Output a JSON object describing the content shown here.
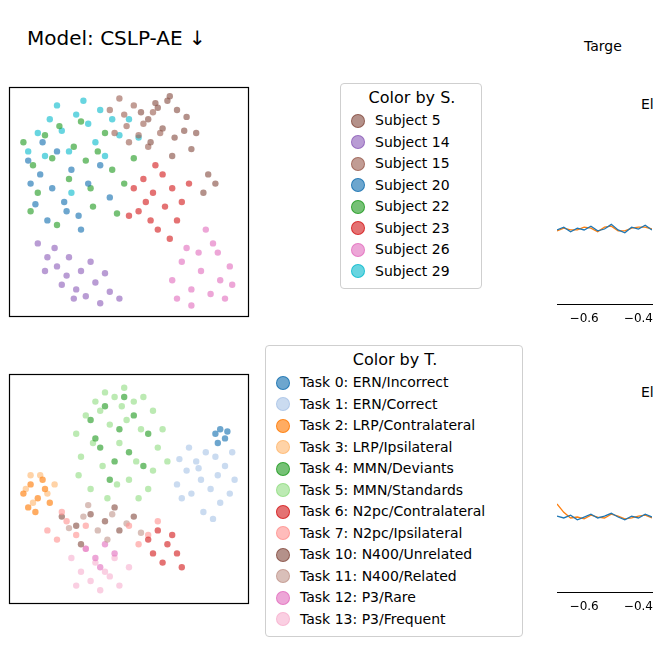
{
  "header": {
    "title": "Model: CSLP-AE ↓",
    "right_title": "Targe"
  },
  "chart_data": [
    {
      "type": "scatter",
      "legend_title": "Color by S.",
      "legend": "right",
      "grid": false,
      "tick_labels": false,
      "xlim": [
        0,
        10
      ],
      "ylim": [
        0,
        10
      ],
      "xticks": [],
      "yticks": [],
      "series": [
        {
          "name": "Subject 5",
          "color": "#8c564b",
          "x": [
            5.8,
            6.2,
            6.6,
            7.0,
            7.4,
            6.4,
            6.9,
            7.3,
            5.9,
            6.7,
            7.8,
            8.3,
            8.6,
            8.1,
            6.1,
            7.6,
            5.5,
            6.8
          ],
          "values": [
            8.6,
            9.1,
            9.4,
            9.0,
            8.7,
            8.2,
            7.8,
            8.1,
            7.6,
            9.6,
            8.0,
            6.2,
            5.8,
            5.4,
            9.3,
            7.3,
            8.9,
            7.0
          ]
        },
        {
          "name": "Subject 14",
          "color": "#9467bd",
          "x": [
            1.2,
            1.6,
            2.0,
            2.4,
            2.8,
            3.2,
            3.6,
            1.9,
            2.5,
            3.0,
            3.8,
            4.2,
            4.6,
            2.2,
            1.5,
            3.4,
            4.0,
            2.7
          ],
          "values": [
            3.2,
            2.6,
            2.2,
            1.8,
            1.2,
            0.9,
            1.5,
            3.0,
            2.6,
            2.0,
            0.6,
            1.1,
            0.8,
            1.4,
            2.0,
            2.4,
            1.9,
            0.8
          ]
        },
        {
          "name": "Subject 15",
          "color": "#a0675a",
          "x": [
            4.8,
            5.2,
            5.6,
            4.4,
            5.0,
            6.0,
            4.6,
            5.4,
            6.3,
            4.2,
            5.8,
            4.9
          ],
          "values": [
            8.8,
            9.2,
            8.4,
            8.0,
            7.6,
            8.9,
            9.5,
            7.9,
            8.0,
            9.0,
            7.4,
            8.3
          ]
        },
        {
          "name": "Subject 20",
          "color": "#1f77b4",
          "x": [
            0.8,
            1.3,
            1.8,
            2.3,
            2.9,
            1.1,
            1.6,
            2.6,
            3.3,
            3.8,
            0.9,
            2.0,
            4.2,
            3.0,
            1.4,
            2.4
          ],
          "values": [
            6.8,
            6.2,
            5.6,
            5.0,
            4.4,
            4.9,
            4.2,
            6.4,
            5.8,
            6.6,
            5.8,
            7.2,
            5.2,
            3.8,
            7.6,
            4.6
          ]
        },
        {
          "name": "Subject 22",
          "color": "#2ca02c",
          "x": [
            0.6,
            1.0,
            1.5,
            2.1,
            2.7,
            3.2,
            3.7,
            4.3,
            4.8,
            1.2,
            2.5,
            3.5,
            4.5,
            5.2,
            2.0,
            3.0,
            0.9,
            4.0,
            3.4,
            1.8
          ],
          "values": [
            7.6,
            6.6,
            7.9,
            8.3,
            7.4,
            6.8,
            7.2,
            6.4,
            5.8,
            5.4,
            6.0,
            4.8,
            4.5,
            6.9,
            4.0,
            8.5,
            4.6,
            8.0,
            5.6,
            6.9
          ]
        },
        {
          "name": "Subject 23",
          "color": "#d62728",
          "x": [
            5.2,
            5.6,
            6.0,
            6.4,
            6.8,
            7.2,
            5.4,
            5.9,
            6.5,
            7.0,
            6.2,
            5.7,
            6.7,
            7.5,
            5.0,
            6.1
          ],
          "values": [
            5.6,
            6.0,
            5.4,
            6.2,
            5.6,
            5.0,
            4.6,
            4.2,
            4.8,
            4.2,
            3.8,
            5.0,
            3.4,
            5.8,
            4.4,
            6.6
          ]
        },
        {
          "name": "Subject 26",
          "color": "#e377c2",
          "x": [
            6.8,
            7.2,
            7.6,
            8.0,
            8.4,
            8.8,
            9.2,
            7.4,
            7.9,
            8.5,
            9.0,
            7.0,
            8.2,
            8.7,
            7.6,
            9.3
          ],
          "values": [
            1.6,
            2.4,
            1.2,
            2.0,
            1.0,
            1.6,
            2.2,
            3.0,
            2.8,
            3.2,
            0.8,
            0.8,
            3.8,
            2.8,
            0.5,
            1.4
          ]
        },
        {
          "name": "Subject 29",
          "color": "#17becf",
          "x": [
            1.2,
            1.7,
            2.2,
            2.8,
            3.3,
            3.8,
            4.3,
            1.5,
            2.5,
            3.6,
            4.6,
            5.0,
            0.8,
            2.0,
            3.1,
            4.0,
            5.4,
            2.6
          ],
          "values": [
            8.0,
            8.6,
            8.1,
            8.8,
            8.4,
            9.0,
            8.6,
            7.0,
            7.2,
            7.6,
            7.9,
            8.6,
            7.2,
            9.2,
            9.4,
            7.0,
            7.8,
            5.4
          ]
        }
      ]
    },
    {
      "type": "scatter",
      "legend_title": "Color by T.",
      "legend": "right",
      "grid": false,
      "tick_labels": false,
      "xlim": [
        0,
        10
      ],
      "ylim": [
        0,
        10
      ],
      "xticks": [],
      "yticks": [],
      "series": [
        {
          "name": "Task 0: ERN/Incorrect",
          "color": "#1f77b4",
          "x": [
            8.6,
            8.8,
            9.0,
            8.7,
            9.1
          ],
          "values": [
            7.4,
            7.6,
            7.2,
            7.0,
            7.5
          ]
        },
        {
          "name": "Task 1: ERN/Correct",
          "color": "#aec7e8",
          "x": [
            7.0,
            7.4,
            7.8,
            8.2,
            8.6,
            9.0,
            9.4,
            7.2,
            7.6,
            8.0,
            8.4,
            8.8,
            9.2,
            7.5,
            8.1,
            8.7,
            7.9,
            8.5,
            9.3,
            7.1
          ],
          "values": [
            5.2,
            5.8,
            6.2,
            6.6,
            6.4,
            6.0,
            5.4,
            4.6,
            4.8,
            5.4,
            5.0,
            4.4,
            4.8,
            6.8,
            4.0,
            5.6,
            5.9,
            3.7,
            6.6,
            6.3
          ]
        },
        {
          "name": "Task 2: LRP/Contralateral",
          "color": "#ff7f0e",
          "x": [
            0.6,
            0.9,
            1.2,
            1.5,
            0.8,
            1.1,
            1.4,
            1.7
          ],
          "values": [
            4.8,
            5.2,
            4.6,
            5.0,
            4.2,
            4.0,
            5.4,
            4.4
          ]
        },
        {
          "name": "Task 3: LRP/Ipsilateral",
          "color": "#ffbb78",
          "x": [
            0.7,
            1.0,
            1.3,
            1.6,
            1.9,
            0.9
          ],
          "values": [
            5.0,
            4.4,
            5.6,
            4.8,
            5.2,
            5.6
          ]
        },
        {
          "name": "Task 4: MMN/Deviants",
          "color": "#2ca02c",
          "x": [
            3.4,
            4.0,
            4.6,
            5.2,
            5.8,
            3.8,
            4.4,
            5.0,
            5.6,
            4.2,
            4.8,
            3.6
          ],
          "values": [
            8.0,
            8.6,
            7.6,
            8.2,
            7.4,
            6.8,
            6.2,
            6.6,
            6.0,
            5.4,
            9.0,
            7.2
          ]
        },
        {
          "name": "Task 5: MMN/Standards",
          "color": "#98df8a",
          "x": [
            2.8,
            3.2,
            3.6,
            4.0,
            4.4,
            4.8,
            5.2,
            5.6,
            6.0,
            6.4,
            3.0,
            3.5,
            4.2,
            4.9,
            5.5,
            6.2,
            2.9,
            3.9,
            4.6,
            5.3,
            6.0,
            6.6,
            3.4,
            4.5,
            5.0,
            5.8,
            4.1,
            5.4,
            3.8,
            4.7
          ],
          "values": [
            7.4,
            8.2,
            8.8,
            9.2,
            9.0,
            9.4,
            8.8,
            9.0,
            8.4,
            7.6,
            6.4,
            7.0,
            7.8,
            8.0,
            7.6,
            6.8,
            5.6,
            6.0,
            7.0,
            6.2,
            5.8,
            6.2,
            5.0,
            5.2,
            5.4,
            5.0,
            4.6,
            4.6,
            8.4,
            8.6
          ]
        },
        {
          "name": "Task 6: N2pc/Contralateral",
          "color": "#d62728",
          "x": [
            5.8,
            6.2,
            6.6,
            7.0,
            6.4,
            6.8,
            7.2,
            6.0
          ],
          "values": [
            2.8,
            3.2,
            2.6,
            2.2,
            1.8,
            3.0,
            1.6,
            2.2
          ]
        },
        {
          "name": "Task 7: N2pc/Ipsilateral",
          "color": "#ff9896",
          "x": [
            1.6,
            2.0,
            2.4,
            2.8,
            3.2,
            5.0,
            5.4,
            5.8,
            2.2,
            6.2
          ],
          "values": [
            3.2,
            2.8,
            3.6,
            3.0,
            3.4,
            3.4,
            2.6,
            3.0,
            4.0,
            3.6
          ]
        },
        {
          "name": "Task 10: N400/Unrelated",
          "color": "#8c564b",
          "x": [
            2.2,
            2.8,
            3.4,
            4.0,
            4.6,
            5.2,
            3.0,
            4.4
          ],
          "values": [
            3.8,
            3.4,
            3.9,
            3.6,
            3.2,
            3.8,
            2.6,
            4.2
          ]
        },
        {
          "name": "Task 11: N400/Related",
          "color": "#c49c94",
          "x": [
            2.5,
            3.1,
            3.7,
            4.3,
            4.9,
            5.5,
            3.3,
            4.1
          ],
          "values": [
            3.3,
            3.8,
            3.2,
            3.9,
            3.5,
            3.1,
            4.3,
            2.8
          ]
        },
        {
          "name": "Task 12: P3/Rare",
          "color": "#e377c2",
          "x": [
            3.2,
            3.6,
            4.0,
            4.4,
            3.8
          ],
          "values": [
            2.4,
            2.0,
            2.6,
            2.2,
            1.6
          ]
        },
        {
          "name": "Task 13: P3/Frequent",
          "color": "#f7b6d2",
          "x": [
            2.6,
            3.0,
            3.4,
            3.8,
            4.2,
            4.6,
            5.0,
            3.2,
            3.6,
            4.0,
            4.4,
            2.8
          ],
          "values": [
            2.0,
            1.4,
            1.0,
            0.6,
            1.2,
            0.8,
            1.6,
            2.4,
            1.8,
            1.4,
            2.0,
            0.8
          ]
        }
      ]
    },
    {
      "type": "line",
      "title": "El",
      "grid": false,
      "tick_labels": "x",
      "xlim": [
        -0.7,
        -0.35
      ],
      "ylim": [
        -1,
        1
      ],
      "xticks": [
        {
          "value": -0.6,
          "label": "−0.6"
        },
        {
          "value": -0.4,
          "label": "−0.4"
        }
      ],
      "yticks": [],
      "x": [
        -0.7,
        -0.675,
        -0.65,
        -0.625,
        -0.6,
        -0.575,
        -0.55,
        -0.525,
        -0.5,
        -0.475,
        -0.45,
        -0.425,
        -0.4,
        -0.375,
        -0.35
      ],
      "series": [
        {
          "color": "#1f77b4",
          "values": [
            -0.2,
            -0.17,
            -0.22,
            -0.18,
            -0.2,
            -0.16,
            -0.21,
            -0.19,
            -0.14,
            -0.2,
            -0.23,
            -0.17,
            -0.19,
            -0.15,
            -0.2
          ]
        },
        {
          "color": "#ff7f0e",
          "values": [
            -0.21,
            -0.18,
            -0.2,
            -0.2,
            -0.17,
            -0.18,
            -0.22,
            -0.17,
            -0.16,
            -0.21,
            -0.21,
            -0.18,
            -0.17,
            -0.17,
            -0.19
          ]
        }
      ]
    },
    {
      "type": "line",
      "title": "El",
      "grid": false,
      "tick_labels": "x",
      "xlim": [
        -0.7,
        -0.35
      ],
      "ylim": [
        -1,
        1
      ],
      "xticks": [
        {
          "value": -0.6,
          "label": "−0.6"
        },
        {
          "value": -0.4,
          "label": "−0.4"
        }
      ],
      "yticks": [],
      "x": [
        -0.7,
        -0.675,
        -0.65,
        -0.625,
        -0.6,
        -0.575,
        -0.55,
        -0.525,
        -0.5,
        -0.475,
        -0.45,
        -0.425,
        -0.4,
        -0.375,
        -0.35
      ],
      "series": [
        {
          "color": "#1f77b4",
          "values": [
            -0.18,
            -0.2,
            -0.17,
            -0.22,
            -0.19,
            -0.16,
            -0.2,
            -0.18,
            -0.15,
            -0.19,
            -0.22,
            -0.18,
            -0.2,
            -0.16,
            -0.19
          ]
        },
        {
          "color": "#ff7f0e",
          "values": [
            -0.05,
            -0.14,
            -0.2,
            -0.19,
            -0.21,
            -0.17,
            -0.19,
            -0.2,
            -0.16,
            -0.18,
            -0.21,
            -0.2,
            -0.18,
            -0.17,
            -0.2
          ]
        }
      ]
    }
  ]
}
